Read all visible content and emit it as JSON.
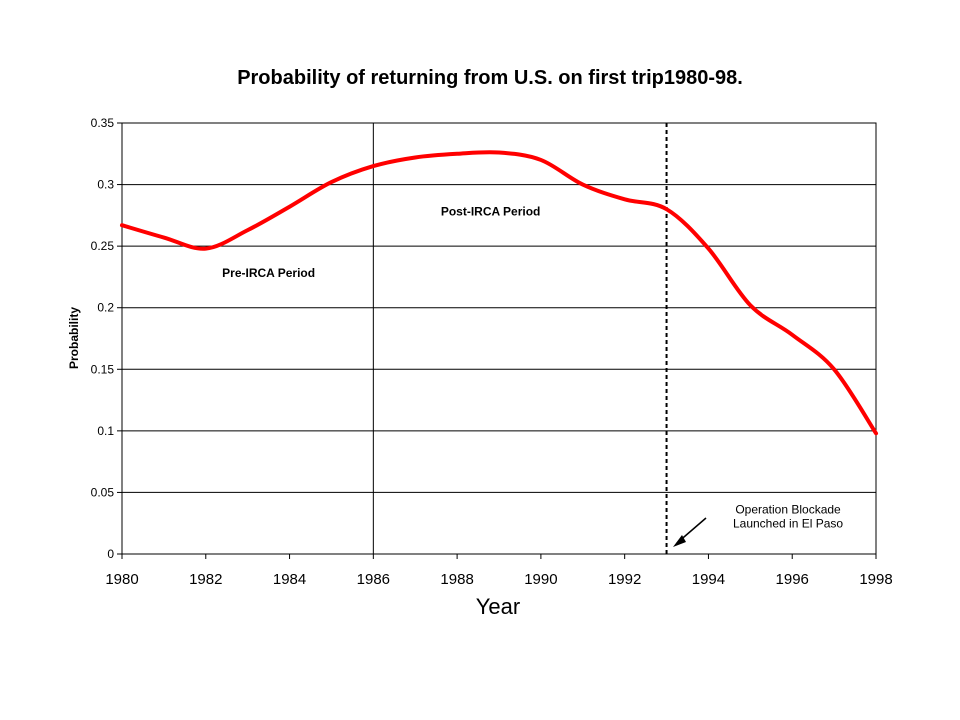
{
  "chart_data": {
    "type": "line",
    "title": "Probability of returning from U.S. on first trip1980-98.",
    "xlabel": "Year",
    "ylabel": "Probability",
    "xlim": [
      1980,
      1998
    ],
    "ylim": [
      0,
      0.35
    ],
    "x_ticks": [
      "1980",
      "1982",
      "1984",
      "1986",
      "1988",
      "1990",
      "1992",
      "1994",
      "1996",
      "1998"
    ],
    "y_ticks": [
      "0",
      "0.05",
      "0.1",
      "0.15",
      "0.2",
      "0.25",
      "0.3",
      "0.35"
    ],
    "y_tick_values": [
      0,
      0.05,
      0.1,
      0.15,
      0.2,
      0.25,
      0.3,
      0.35
    ],
    "x_tick_values": [
      1980,
      1982,
      1984,
      1986,
      1988,
      1990,
      1992,
      1994,
      1996,
      1998
    ],
    "grid": true,
    "series": [
      {
        "color": "#ff0000",
        "x": [
          1980,
          1981,
          1982,
          1983,
          1984,
          1985,
          1986,
          1987,
          1988,
          1989,
          1990,
          1991,
          1992,
          1993,
          1994,
          1995,
          1996,
          1997,
          1998
        ],
        "values": [
          0.267,
          0.257,
          0.248,
          0.263,
          0.282,
          0.302,
          0.315,
          0.322,
          0.325,
          0.326,
          0.32,
          0.3,
          0.288,
          0.28,
          0.248,
          0.202,
          0.178,
          0.15,
          0.098
        ]
      }
    ],
    "reference_lines": [
      {
        "x": 1986,
        "style": "solid"
      },
      {
        "x": 1993,
        "style": "dashed"
      }
    ],
    "annotations": [
      {
        "text": "Pre-IRCA Period",
        "x": 1983.5,
        "y": 0.225
      },
      {
        "text": "Post-IRCA Period",
        "x": 1988.8,
        "y": 0.275
      },
      {
        "lines": [
          "Operation Blockade",
          "Launched in El Paso"
        ],
        "x": 1995.9,
        "y": 0.033
      }
    ]
  }
}
